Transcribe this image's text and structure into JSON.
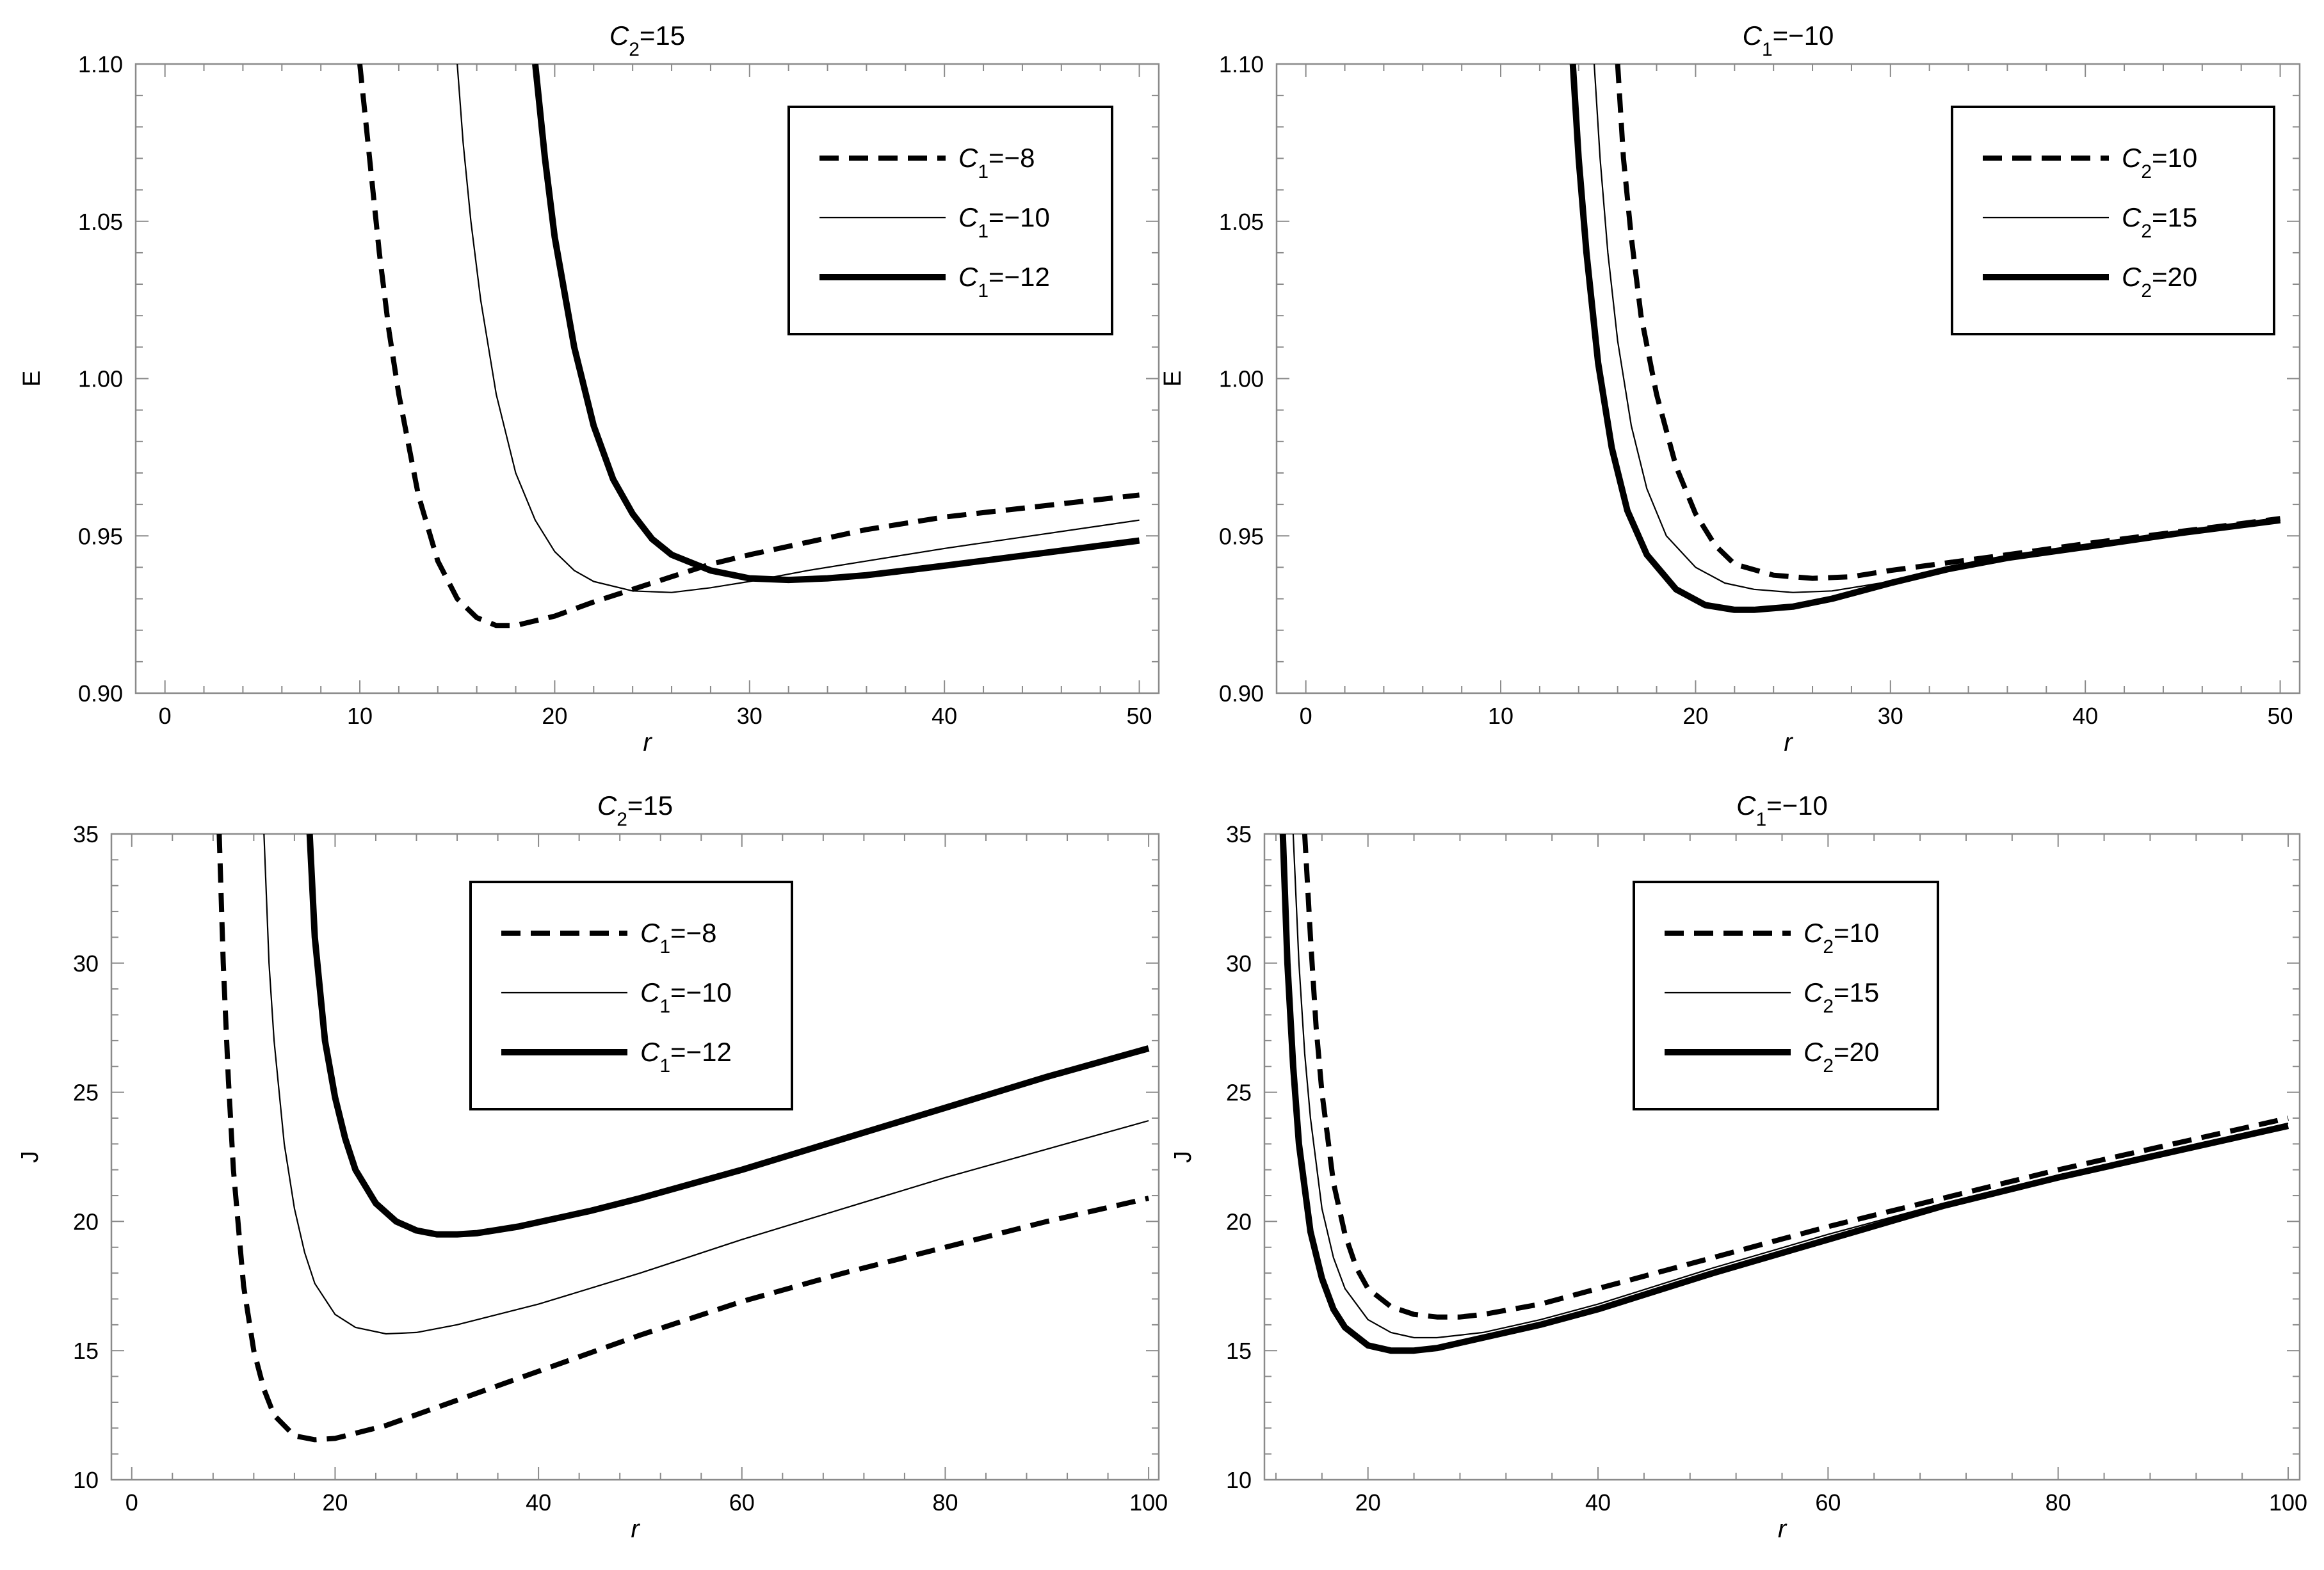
{
  "chart_data": [
    {
      "type": "line",
      "title": "C2=15",
      "title_parts": [
        "C",
        "2",
        "=15"
      ],
      "xlabel": "r",
      "ylabel": "E",
      "xlim": [
        -1.5,
        51
      ],
      "ylim": [
        0.9,
        1.1
      ],
      "xticks": [
        0,
        10,
        20,
        30,
        40,
        50
      ],
      "xtick_labels": [
        "0",
        "10",
        "20",
        "30",
        "40",
        "50"
      ],
      "yticks": [
        0.9,
        0.95,
        1.0,
        1.05,
        1.1
      ],
      "ytick_labels": [
        "0.90",
        "0.95",
        "1.00",
        "1.05",
        "1.10"
      ],
      "legend_position": "top-right",
      "series": [
        {
          "name": "C1=-8",
          "name_parts": [
            "C",
            "1",
            "=−8"
          ],
          "style": "dashed",
          "x": [
            10.0,
            10.5,
            11,
            11.5,
            12,
            13,
            14,
            15,
            16,
            17,
            18,
            20,
            22,
            24,
            26,
            28,
            30,
            33,
            36,
            40,
            45,
            50
          ],
          "y": [
            1.1,
            1.07,
            1.04,
            1.015,
            0.995,
            0.963,
            0.942,
            0.93,
            0.924,
            0.9215,
            0.9215,
            0.9245,
            0.929,
            0.933,
            0.937,
            0.941,
            0.944,
            0.948,
            0.952,
            0.956,
            0.9595,
            0.963
          ]
        },
        {
          "name": "C1=-10",
          "name_parts": [
            "C",
            "1",
            "=−10"
          ],
          "style": "thin",
          "x": [
            15.0,
            15.3,
            15.7,
            16.2,
            17,
            18,
            19,
            20,
            21,
            22,
            24,
            26,
            28,
            30,
            33,
            36,
            40,
            45,
            50
          ],
          "y": [
            1.1,
            1.075,
            1.05,
            1.025,
            0.995,
            0.97,
            0.955,
            0.945,
            0.939,
            0.9355,
            0.9325,
            0.932,
            0.9335,
            0.9355,
            0.939,
            0.942,
            0.946,
            0.9505,
            0.955
          ]
        },
        {
          "name": "C1=-12",
          "name_parts": [
            "C",
            "1",
            "=−12"
          ],
          "style": "thick",
          "x": [
            19.0,
            19.5,
            20,
            21,
            22,
            23,
            24,
            25,
            26,
            28,
            30,
            32,
            34,
            36,
            40,
            45,
            50
          ],
          "y": [
            1.1,
            1.07,
            1.045,
            1.01,
            0.985,
            0.968,
            0.957,
            0.949,
            0.944,
            0.939,
            0.9365,
            0.936,
            0.9365,
            0.9375,
            0.9405,
            0.9445,
            0.9485
          ]
        }
      ]
    },
    {
      "type": "line",
      "title": "C1=-10",
      "title_parts": [
        "C",
        "1",
        "=−10"
      ],
      "xlabel": "r",
      "ylabel": "E",
      "xlim": [
        -1.5,
        51
      ],
      "ylim": [
        0.9,
        1.1
      ],
      "xticks": [
        0,
        10,
        20,
        30,
        40,
        50
      ],
      "xtick_labels": [
        "0",
        "10",
        "20",
        "30",
        "40",
        "50"
      ],
      "yticks": [
        0.9,
        0.95,
        1.0,
        1.05,
        1.1
      ],
      "ytick_labels": [
        "0.90",
        "0.95",
        "1.00",
        "1.05",
        "1.10"
      ],
      "legend_position": "top-right",
      "series": [
        {
          "name": "C2=10",
          "name_parts": [
            "C",
            "2",
            "=10"
          ],
          "style": "dashed",
          "x": [
            16.0,
            16.3,
            16.7,
            17.2,
            18,
            19,
            20,
            21,
            22,
            24,
            26,
            28,
            30,
            33,
            36,
            40,
            45,
            50
          ],
          "y": [
            1.1,
            1.07,
            1.045,
            1.02,
            0.995,
            0.972,
            0.957,
            0.947,
            0.941,
            0.9375,
            0.9365,
            0.937,
            0.939,
            0.9415,
            0.944,
            0.9475,
            0.9515,
            0.9555
          ]
        },
        {
          "name": "C2=15",
          "name_parts": [
            "C",
            "2",
            "=15"
          ],
          "style": "thin",
          "x": [
            14.8,
            15.1,
            15.5,
            16,
            16.7,
            17.5,
            18.5,
            20,
            21.5,
            23,
            25,
            27,
            30,
            33,
            36,
            40,
            45,
            50
          ],
          "y": [
            1.1,
            1.07,
            1.04,
            1.012,
            0.985,
            0.965,
            0.95,
            0.94,
            0.935,
            0.933,
            0.932,
            0.9325,
            0.9355,
            0.9395,
            0.943,
            0.9465,
            0.951,
            0.955
          ]
        },
        {
          "name": "C2=20",
          "name_parts": [
            "C",
            "2",
            "=20"
          ],
          "style": "thick",
          "x": [
            13.7,
            14,
            14.4,
            15,
            15.7,
            16.5,
            17.5,
            19,
            20.5,
            22,
            23,
            25,
            27,
            30,
            33,
            36,
            40,
            45,
            50
          ],
          "y": [
            1.1,
            1.07,
            1.04,
            1.005,
            0.978,
            0.958,
            0.944,
            0.933,
            0.928,
            0.9265,
            0.9265,
            0.9275,
            0.93,
            0.935,
            0.9395,
            0.943,
            0.9465,
            0.951,
            0.955
          ]
        }
      ]
    },
    {
      "type": "line",
      "title": "C2=15",
      "title_parts": [
        "C",
        "2",
        "=15"
      ],
      "xlabel": "r",
      "ylabel": "J",
      "xlim": [
        -2,
        101
      ],
      "ylim": [
        10,
        35
      ],
      "xticks": [
        0,
        20,
        40,
        60,
        80,
        100
      ],
      "xtick_labels": [
        "0",
        "20",
        "40",
        "60",
        "80",
        "100"
      ],
      "yticks": [
        10,
        15,
        20,
        25,
        30,
        35
      ],
      "ytick_labels": [
        "10",
        "15",
        "20",
        "25",
        "30",
        "35"
      ],
      "legend_position": "top-center",
      "series": [
        {
          "name": "C1=-8",
          "name_parts": [
            "C",
            "1",
            "=−8"
          ],
          "style": "dashed",
          "x": [
            8.6,
            9.0,
            9.5,
            10,
            11,
            12,
            13,
            14,
            16,
            18,
            20,
            25,
            30,
            40,
            50,
            60,
            70,
            80,
            90,
            100
          ],
          "y": [
            35,
            30,
            25.5,
            22,
            17.5,
            15,
            13.5,
            12.5,
            11.7,
            11.55,
            11.6,
            12.1,
            12.8,
            14.2,
            15.6,
            16.9,
            18.0,
            19.0,
            20.0,
            20.9
          ]
        },
        {
          "name": "C1=-10",
          "name_parts": [
            "C",
            "1",
            "=−10"
          ],
          "style": "thin",
          "x": [
            13.0,
            13.5,
            14,
            15,
            16,
            17,
            18,
            20,
            22,
            25,
            28,
            32,
            40,
            50,
            60,
            70,
            80,
            90,
            100
          ],
          "y": [
            35,
            30,
            27,
            23,
            20.5,
            18.8,
            17.6,
            16.4,
            15.9,
            15.65,
            15.7,
            16.0,
            16.8,
            18.0,
            19.3,
            20.5,
            21.7,
            22.8,
            23.9
          ]
        },
        {
          "name": "C1=-12",
          "name_parts": [
            "C",
            "1",
            "=−12"
          ],
          "style": "thick",
          "x": [
            17.5,
            18,
            19,
            20,
            21,
            22,
            24,
            26,
            28,
            30,
            32,
            34,
            38,
            45,
            50,
            60,
            70,
            80,
            90,
            100
          ],
          "y": [
            35,
            31,
            27,
            24.8,
            23.2,
            22.0,
            20.7,
            20.0,
            19.65,
            19.5,
            19.5,
            19.55,
            19.8,
            20.4,
            20.9,
            22.0,
            23.2,
            24.4,
            25.6,
            26.7
          ]
        }
      ]
    },
    {
      "type": "line",
      "title": "C1=-10",
      "title_parts": [
        "C",
        "1",
        "=−10"
      ],
      "xlabel": "r",
      "ylabel": "J",
      "xlim": [
        11,
        101
      ],
      "ylim": [
        10,
        35
      ],
      "xticks": [
        20,
        40,
        60,
        80,
        100
      ],
      "xtick_labels": [
        "20",
        "40",
        "60",
        "80",
        "100"
      ],
      "yticks": [
        10,
        15,
        20,
        25,
        30,
        35
      ],
      "ytick_labels": [
        "10",
        "15",
        "20",
        "25",
        "30",
        "35"
      ],
      "legend_position": "top-left",
      "series": [
        {
          "name": "C2=10",
          "name_parts": [
            "C",
            "2",
            "=10"
          ],
          "style": "dashed",
          "x": [
            14.5,
            15,
            15.5,
            16,
            17,
            18,
            19,
            20,
            22,
            24,
            26,
            28,
            30,
            35,
            40,
            50,
            60,
            70,
            80,
            90,
            100
          ],
          "y": [
            35,
            31,
            27.5,
            25,
            21.5,
            19.5,
            18.2,
            17.4,
            16.7,
            16.4,
            16.3,
            16.3,
            16.4,
            16.8,
            17.4,
            18.6,
            19.8,
            20.9,
            22.0,
            23.0,
            24.0
          ]
        },
        {
          "name": "C2=15",
          "name_parts": [
            "C",
            "2",
            "=15"
          ],
          "style": "thin",
          "x": [
            13.5,
            14,
            14.5,
            15,
            16,
            17,
            18,
            20,
            22,
            24,
            26,
            30,
            35,
            40,
            50,
            60,
            70,
            80,
            90,
            100
          ],
          "y": [
            35,
            30,
            26.5,
            24,
            20.5,
            18.6,
            17.4,
            16.2,
            15.7,
            15.5,
            15.5,
            15.7,
            16.2,
            16.8,
            18.2,
            19.5,
            20.7,
            21.8,
            22.8,
            23.8
          ]
        },
        {
          "name": "C2=20",
          "name_parts": [
            "C",
            "2",
            "=20"
          ],
          "style": "thick",
          "x": [
            12.6,
            13,
            13.5,
            14,
            15,
            16,
            17,
            18,
            20,
            22,
            24,
            26,
            28,
            30,
            35,
            40,
            50,
            60,
            70,
            80,
            90,
            100
          ],
          "y": [
            35,
            30,
            26,
            23,
            19.6,
            17.8,
            16.6,
            15.9,
            15.2,
            15.0,
            15.0,
            15.1,
            15.3,
            15.5,
            16.0,
            16.6,
            18.0,
            19.3,
            20.6,
            21.7,
            22.7,
            23.7
          ]
        }
      ]
    }
  ]
}
